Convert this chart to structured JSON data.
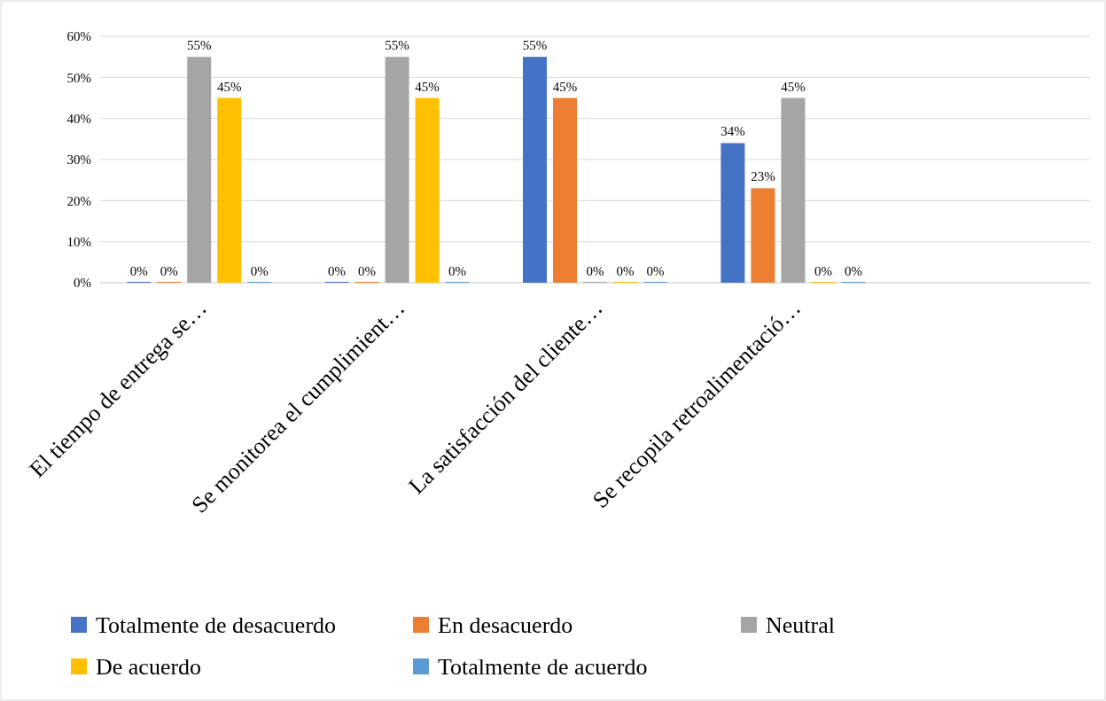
{
  "chart_data": {
    "type": "bar",
    "categories": [
      "El tiempo de entrega se…",
      "Se monitorea el cumplimient…",
      "La satisfacción del cliente…",
      "Se recopila retroalimentació…",
      null
    ],
    "series": [
      {
        "name": "Totalmente de desacuerdo",
        "color": "#4472c4",
        "values": [
          0,
          0,
          55,
          34,
          null
        ],
        "value_labels": [
          "0%",
          "0%",
          "55%",
          "34%",
          null
        ]
      },
      {
        "name": "En desacuerdo",
        "color": "#ed7d31",
        "values": [
          0,
          0,
          45,
          23,
          null
        ],
        "value_labels": [
          "0%",
          "0%",
          "45%",
          "23%",
          null
        ]
      },
      {
        "name": "Neutral",
        "color": "#a5a5a5",
        "values": [
          55,
          55,
          0,
          45,
          null
        ],
        "value_labels": [
          "55%",
          "55%",
          "0%",
          "45%",
          null
        ]
      },
      {
        "name": "De acuerdo",
        "color": "#ffc000",
        "values": [
          45,
          45,
          0,
          0,
          null
        ],
        "value_labels": [
          "45%",
          "45%",
          "0%",
          "0%",
          null
        ]
      },
      {
        "name": "Totalmente de acuerdo",
        "color": "#5b9bd5",
        "values": [
          0,
          0,
          0,
          0,
          null
        ],
        "value_labels": [
          "0%",
          "0%",
          "0%",
          "0%",
          null
        ]
      }
    ],
    "ylim": [
      0,
      60
    ],
    "yticks": [
      {
        "value": 0,
        "label": "0%"
      },
      {
        "value": 10,
        "label": "10%"
      },
      {
        "value": 20,
        "label": "20%"
      },
      {
        "value": 30,
        "label": "30%"
      },
      {
        "value": 40,
        "label": "40%"
      },
      {
        "value": 50,
        "label": "50%"
      },
      {
        "value": 60,
        "label": "60%"
      }
    ],
    "grid": "y",
    "legend": "bottom"
  }
}
